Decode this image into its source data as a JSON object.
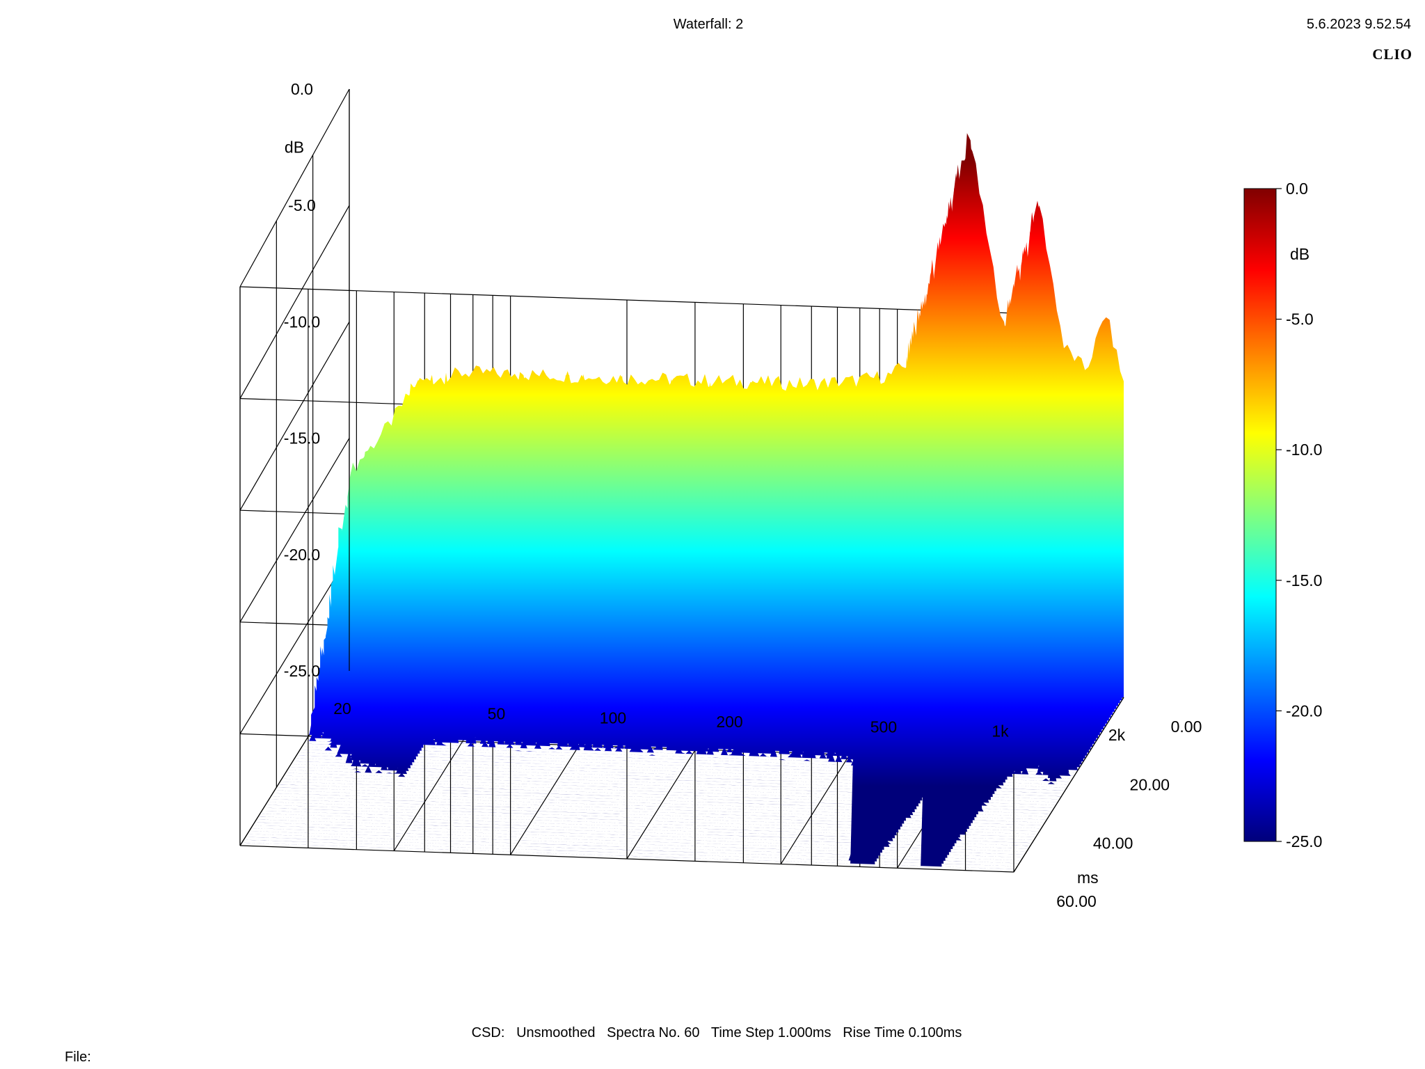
{
  "header": {
    "title": "Waterfall: 2",
    "timestamp": "5.6.2023 9.52.54",
    "brand": "CLIO"
  },
  "footer": {
    "settings": "CSD:   Unsmoothed   Spectra No. 60   Time Step 1.000ms   Rise Time 0.100ms",
    "file_label": "File:"
  },
  "chart_data": {
    "type": "heatmap",
    "subtype": "waterfall-3d",
    "analysis": "CSD",
    "smoothing": "Unsmoothed",
    "spectra_count": 60,
    "time_step_ms": 1.0,
    "rise_time_ms": 0.1,
    "x_axis": {
      "label": "",
      "scale": "log",
      "range": [
        20,
        2000
      ],
      "ticks": [
        20,
        50,
        100,
        200,
        500,
        1000,
        2000
      ],
      "tick_labels": [
        "20",
        "50",
        "100",
        "200",
        "500",
        "1k",
        "2k"
      ]
    },
    "y_axis": {
      "label": "dB",
      "range": [
        -25,
        0
      ],
      "ticks": [
        0,
        -5,
        -10,
        -15,
        -20,
        -25
      ],
      "tick_labels": [
        "0.0",
        "-5.0",
        "-10.0",
        "-15.0",
        "-20.0",
        "-25.0"
      ]
    },
    "z_axis": {
      "label": "ms",
      "range": [
        0,
        60
      ],
      "ticks": [
        0,
        20,
        40,
        60
      ],
      "tick_labels": [
        "0.00",
        "20.00",
        "40.00",
        "60.00"
      ]
    },
    "colorbar": {
      "label": "dB",
      "range": [
        -25,
        0
      ],
      "ticks": [
        0,
        -5,
        -10,
        -15,
        -20,
        -25
      ],
      "tick_labels": [
        "0.0",
        "-5.0",
        "-10.0",
        "-15.0",
        "-20.0",
        "-25.0"
      ],
      "colors": [
        "#00007a",
        "#0000ff",
        "#0080ff",
        "#00ffff",
        "#80ff80",
        "#ffff00",
        "#ff8000",
        "#ff0000",
        "#800000"
      ]
    },
    "first_spectrum": {
      "frequency_hz": [
        20,
        25,
        30,
        40,
        50,
        60,
        80,
        100,
        130,
        160,
        200,
        250,
        300,
        400,
        500,
        600,
        700,
        800,
        900,
        1000,
        1100,
        1200,
        1400,
        1600,
        1800,
        2000
      ],
      "level_db": [
        -16.5,
        -14.5,
        -12.5,
        -12.0,
        -12.0,
        -12.0,
        -12.0,
        -12.0,
        -12.0,
        -12.0,
        -12.0,
        -12.0,
        -12.0,
        -11.8,
        -11.5,
        -10.5,
        -8.0,
        -1.0,
        -6.0,
        -10.0,
        -11.5,
        -3.5,
        -10.0,
        -11.0,
        -8.5,
        -11.5
      ]
    },
    "decay": {
      "peak_frequencies_hz": [
        800,
        1200
      ],
      "peak_levels_db": [
        -1.0,
        -3.5
      ],
      "floor_db": -25
    }
  }
}
